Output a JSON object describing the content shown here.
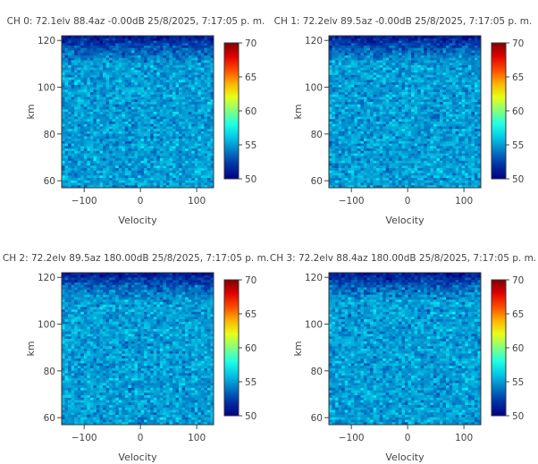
{
  "chart_data": [
    {
      "type": "heatmap",
      "title": "CH 0: 72.1elv 88.4az -0.00dB 25/8/2025, 7:17:05 p. m.",
      "xlabel": "Velocity",
      "ylabel": "km",
      "xlim": [
        -140,
        130
      ],
      "ylim": [
        57,
        122
      ],
      "x_ticks": [
        -100,
        0,
        100
      ],
      "y_ticks": [
        60,
        80,
        100,
        120
      ],
      "colorscale": "jet",
      "zlim": [
        50,
        70
      ],
      "colorbar_ticks": [
        50,
        55,
        60,
        65,
        70
      ],
      "profile": {
        "heights_km": [
          57,
          110,
          116,
          122
        ],
        "mean_power_db": [
          55,
          55,
          53.5,
          50.8
        ]
      }
    },
    {
      "type": "heatmap",
      "title": "CH 1: 72.2elv 89.5az -0.00dB 25/8/2025, 7:17:05 p. m.",
      "xlabel": "Velocity",
      "ylabel": "km",
      "xlim": [
        -140,
        130
      ],
      "ylim": [
        57,
        122
      ],
      "x_ticks": [
        -100,
        0,
        100
      ],
      "y_ticks": [
        60,
        80,
        100,
        120
      ],
      "colorscale": "jet",
      "zlim": [
        50,
        70
      ],
      "colorbar_ticks": [
        50,
        55,
        60,
        65,
        70
      ],
      "profile": {
        "heights_km": [
          57,
          110,
          116,
          122
        ],
        "mean_power_db": [
          55,
          55,
          53.5,
          50.8
        ]
      }
    },
    {
      "type": "heatmap",
      "title": "CH 2: 72.2elv 89.5az 180.00dB 25/8/2025, 7:17:05 p. m.",
      "xlabel": "Velocity",
      "ylabel": "km",
      "xlim": [
        -140,
        130
      ],
      "ylim": [
        57,
        122
      ],
      "x_ticks": [
        -100,
        0,
        100
      ],
      "y_ticks": [
        60,
        80,
        100,
        120
      ],
      "colorscale": "jet",
      "zlim": [
        50,
        70
      ],
      "colorbar_ticks": [
        50,
        55,
        60,
        65,
        70
      ],
      "profile": {
        "heights_km": [
          57,
          110,
          116,
          122
        ],
        "mean_power_db": [
          55,
          55,
          53.5,
          50.8
        ]
      }
    },
    {
      "type": "heatmap",
      "title": "CH 3: 72.2elv 88.4az 180.00dB 25/8/2025, 7:17:05 p. m.",
      "xlabel": "Velocity",
      "ylabel": "km",
      "xlim": [
        -140,
        130
      ],
      "ylim": [
        57,
        122
      ],
      "x_ticks": [
        -100,
        0,
        100
      ],
      "y_ticks": [
        60,
        80,
        100,
        120
      ],
      "colorscale": "jet",
      "zlim": [
        50,
        70
      ],
      "colorbar_ticks": [
        50,
        55,
        60,
        65,
        70
      ],
      "profile": {
        "heights_km": [
          57,
          110,
          116,
          122
        ],
        "mean_power_db": [
          55,
          55,
          53.5,
          50.8
        ]
      }
    }
  ]
}
